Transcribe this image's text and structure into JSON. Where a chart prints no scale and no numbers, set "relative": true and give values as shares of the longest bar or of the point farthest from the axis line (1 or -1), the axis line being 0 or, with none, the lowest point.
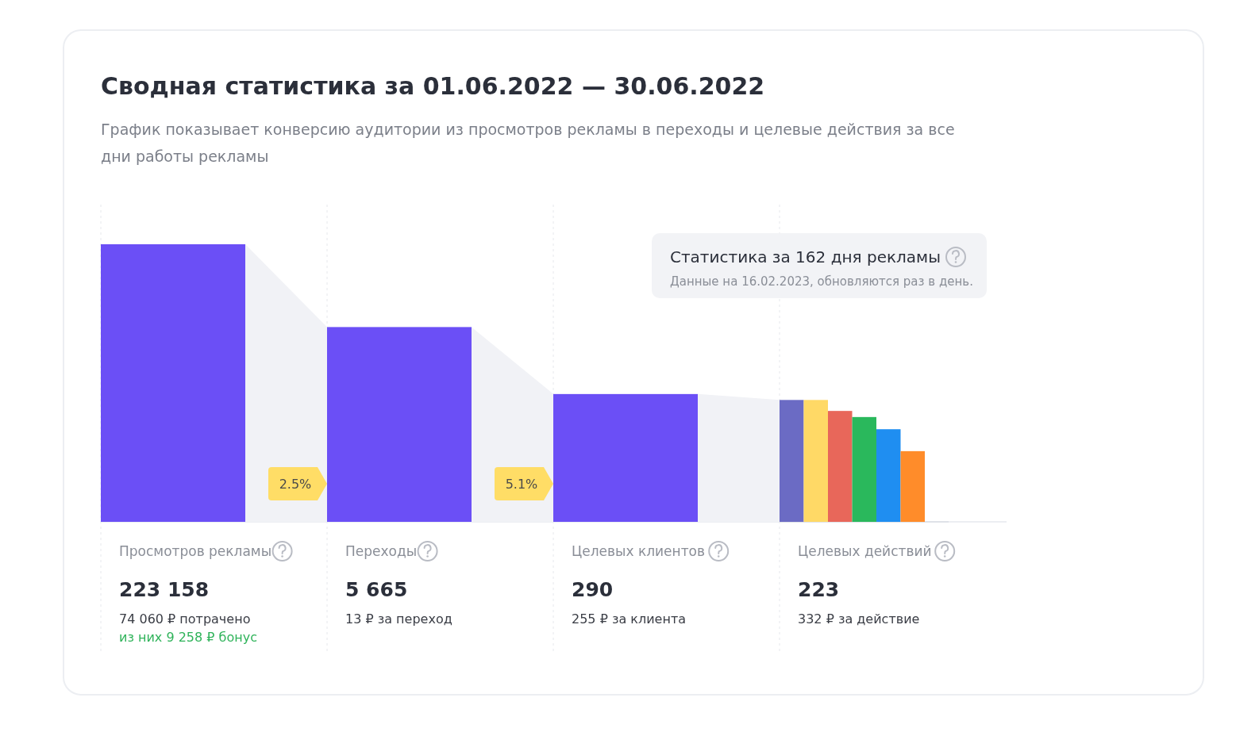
{
  "chart_data": [
    {
      "type": "other",
      "title": "Сводная статистика за 01.06.2022 — 30.06.2022",
      "subtitle": "График показывает конверсию аудитории из просмотров рекламы в переходы и целевые действия за все дни работы рекламы",
      "categories": [
        "Просмотров рекламы",
        "Переходы",
        "Целевых клиентов",
        "Целевых действий"
      ],
      "values": [
        223158,
        5665,
        290,
        223
      ],
      "value_labels": [
        "223 158",
        "5 665",
        "290",
        "223"
      ],
      "color": "#6b4ff6",
      "annotations": [
        {
          "text": "74 060 ₽ потрачено",
          "x": "Просмотров рекламы"
        },
        {
          "text": "из них 9 258 ₽ бонус",
          "x": "Просмотров рекламы"
        },
        {
          "text": "13 ₽ за переход",
          "x": "Переходы"
        },
        {
          "text": "255 ₽ за клиента",
          "x": "Целевых клиентов"
        },
        {
          "text": "332 ₽ за действие",
          "x": "Целевых действий"
        },
        {
          "text": "2.5%",
          "x": "Переходы"
        },
        {
          "text": "5.1%",
          "x": "Целевых клиентов"
        },
        "Статистика за 162 дня рекламы",
        "Данные на 16.02.2023, обновляются раз в день."
      ]
    },
    {
      "type": "bar",
      "relative": true,
      "categories": [
        null,
        null,
        null,
        null,
        null,
        null
      ],
      "values": [
        1,
        1,
        0.91,
        0.86,
        0.76,
        0.58
      ],
      "colors": [
        "#6b6bc4",
        "#ffd966",
        "#e8675a",
        "#2ab85c",
        "#1f8ef1",
        "#ff8c2a"
      ]
    }
  ]
}
